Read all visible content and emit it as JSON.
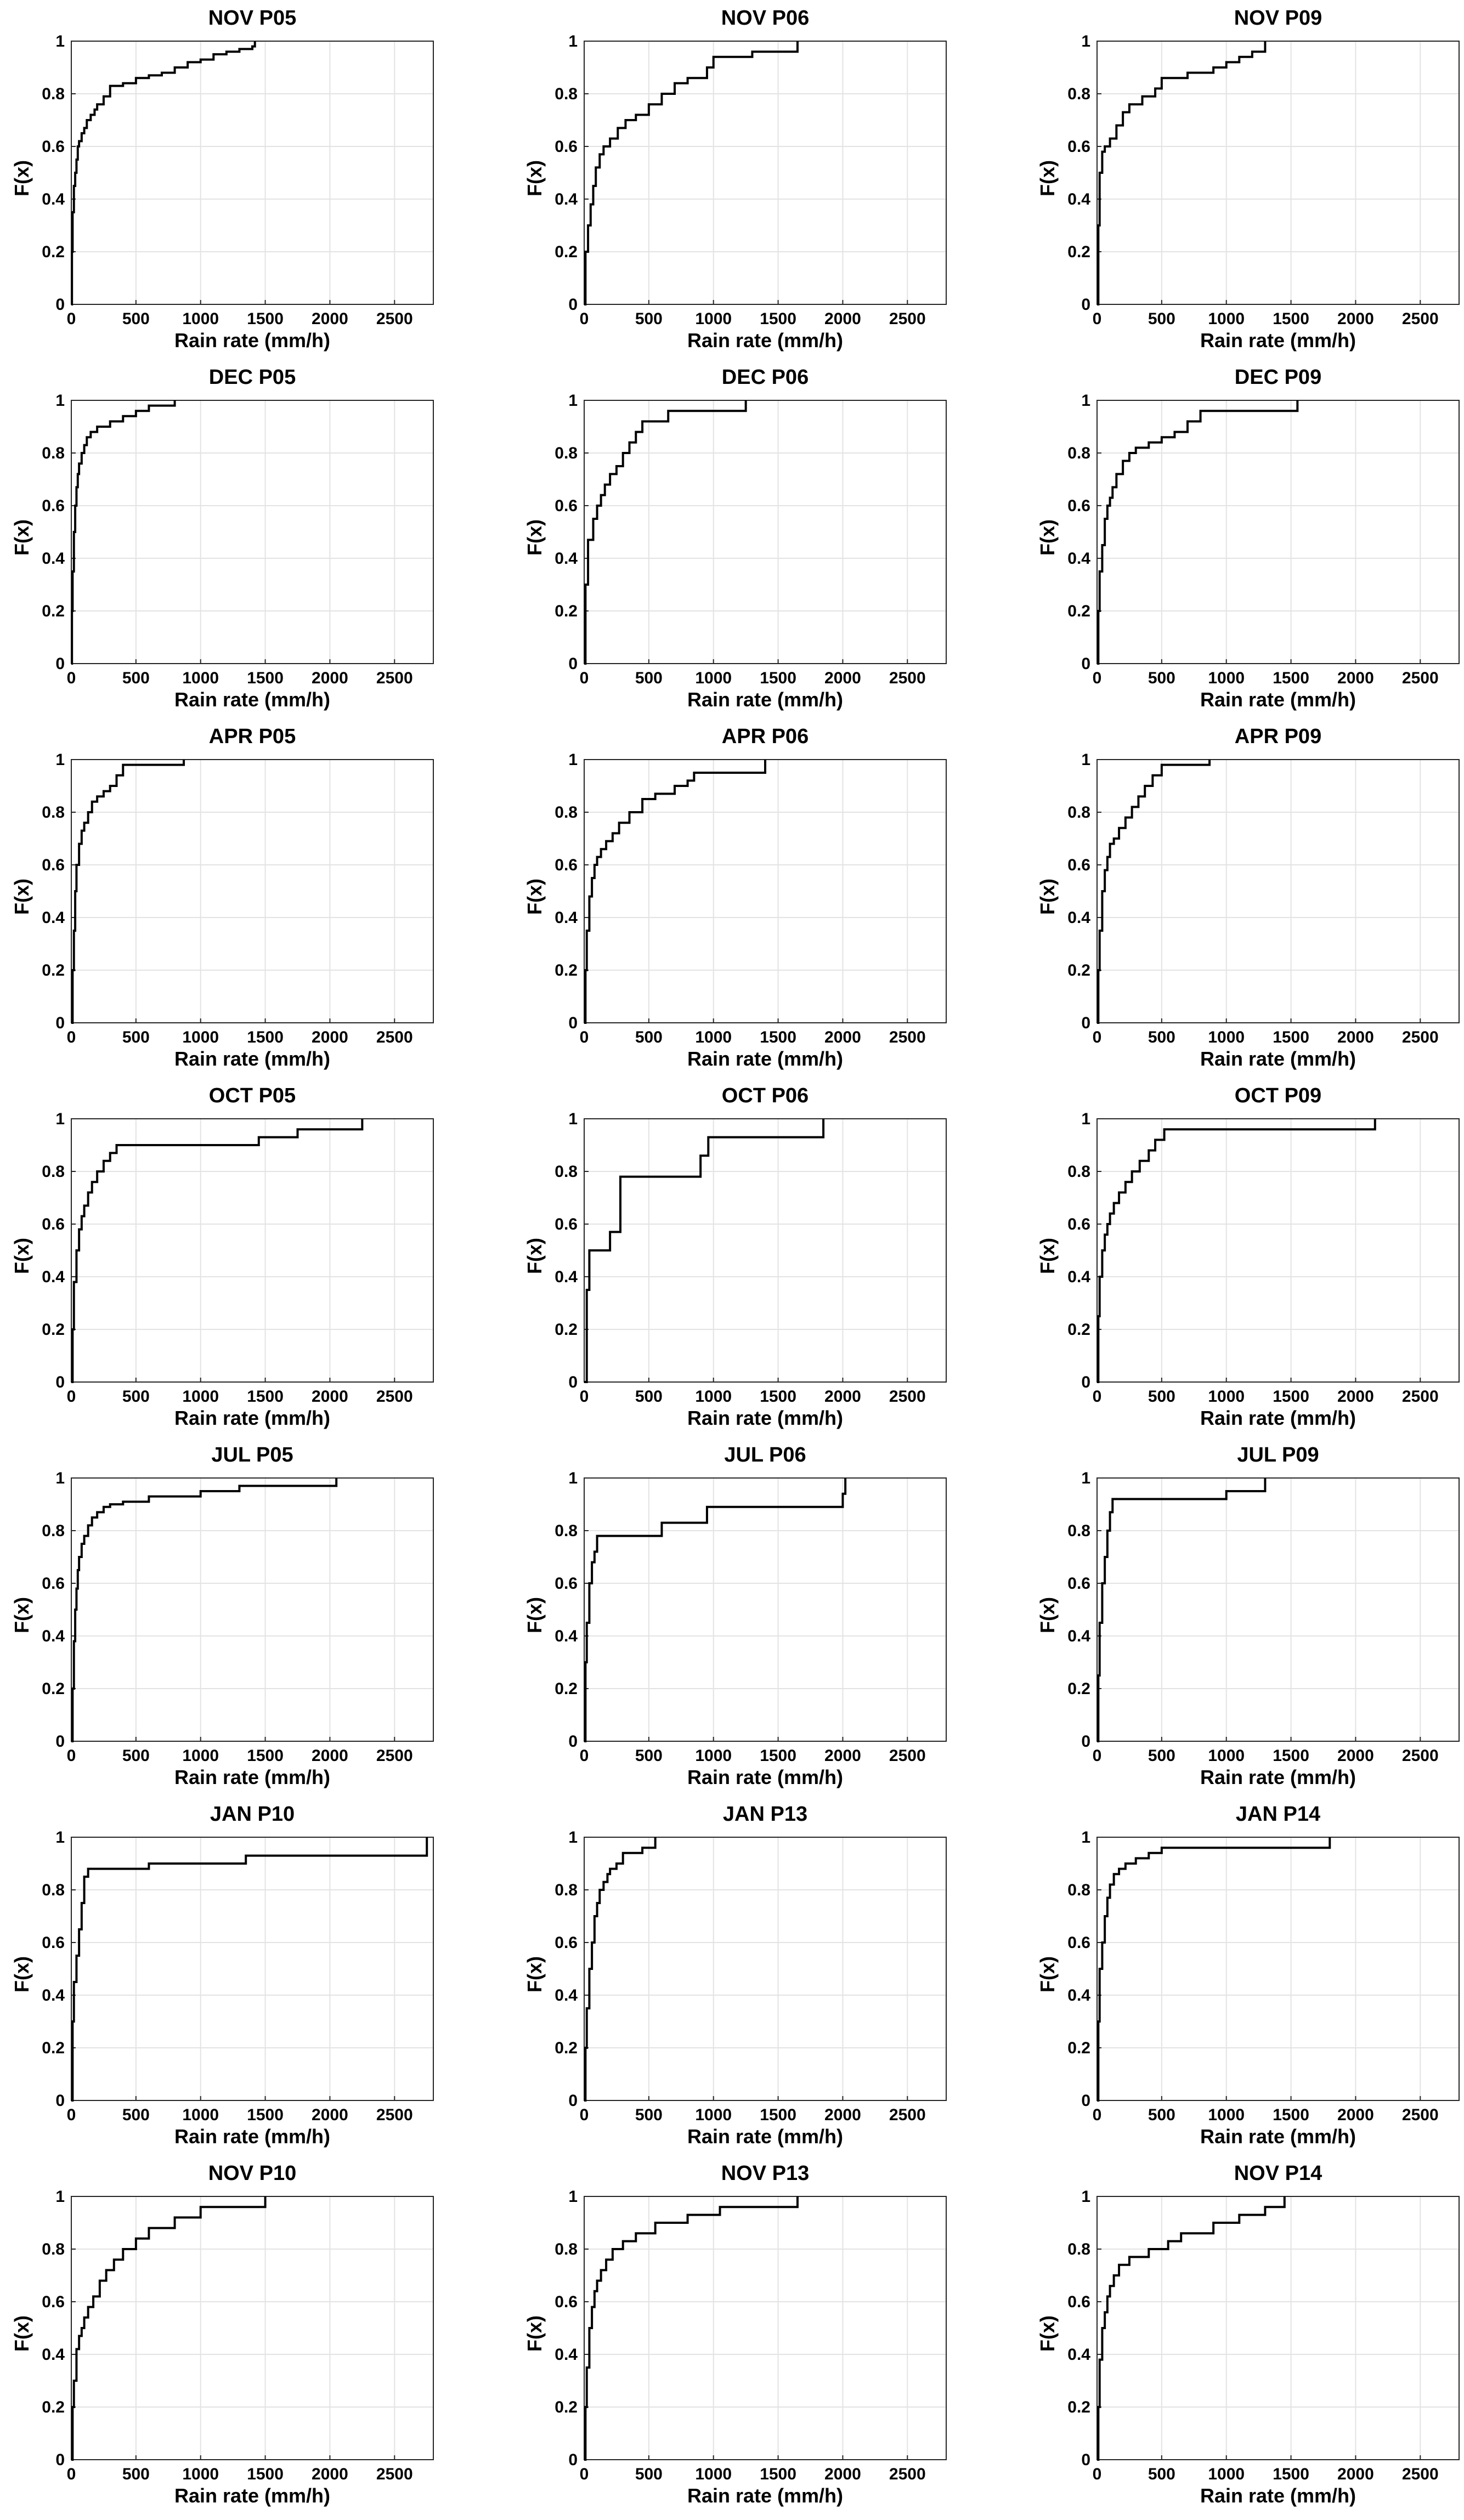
{
  "chart_data": [
    {
      "type": "line",
      "title": "NOV P05",
      "xlabel": "Rain rate (mm/h)",
      "ylabel": "F(x)",
      "xlim": [
        0,
        2800
      ],
      "ylim": [
        0,
        1
      ],
      "grid": true,
      "series": [
        {
          "x": [
            0,
            5,
            10,
            20,
            30,
            40,
            50,
            60,
            80,
            100,
            120,
            150,
            180,
            200,
            250,
            300,
            400,
            500,
            600,
            700,
            800,
            900,
            1000,
            1100,
            1200,
            1300,
            1400,
            1420
          ],
          "y": [
            0,
            0.2,
            0.35,
            0.45,
            0.5,
            0.55,
            0.6,
            0.62,
            0.65,
            0.67,
            0.7,
            0.72,
            0.74,
            0.76,
            0.79,
            0.83,
            0.84,
            0.86,
            0.87,
            0.88,
            0.9,
            0.92,
            0.93,
            0.95,
            0.96,
            0.97,
            0.98,
            1.0
          ]
        }
      ]
    },
    {
      "type": "line",
      "title": "NOV P06",
      "xlabel": "Rain rate (mm/h)",
      "ylabel": "F(x)",
      "xlim": [
        0,
        2800
      ],
      "ylim": [
        0,
        1
      ],
      "grid": true,
      "series": [
        {
          "x": [
            0,
            10,
            30,
            50,
            70,
            90,
            120,
            150,
            200,
            260,
            320,
            400,
            500,
            600,
            700,
            800,
            950,
            1000,
            1300,
            1650
          ],
          "y": [
            0,
            0.2,
            0.3,
            0.38,
            0.45,
            0.52,
            0.57,
            0.6,
            0.63,
            0.67,
            0.7,
            0.72,
            0.76,
            0.8,
            0.84,
            0.86,
            0.9,
            0.94,
            0.96,
            1.0
          ]
        }
      ]
    },
    {
      "type": "line",
      "title": "NOV P09",
      "xlabel": "Rain rate (mm/h)",
      "ylabel": "F(x)",
      "xlim": [
        0,
        2800
      ],
      "ylim": [
        0,
        1
      ],
      "grid": true,
      "series": [
        {
          "x": [
            0,
            10,
            20,
            40,
            60,
            100,
            150,
            200,
            250,
            350,
            450,
            500,
            700,
            900,
            1000,
            1100,
            1200,
            1300
          ],
          "y": [
            0,
            0.3,
            0.5,
            0.58,
            0.6,
            0.63,
            0.68,
            0.73,
            0.76,
            0.79,
            0.82,
            0.86,
            0.88,
            0.9,
            0.92,
            0.94,
            0.96,
            1.0
          ]
        }
      ]
    },
    {
      "type": "line",
      "title": "DEC P05",
      "xlabel": "Rain rate (mm/h)",
      "ylabel": "F(x)",
      "xlim": [
        0,
        2800
      ],
      "ylim": [
        0,
        1
      ],
      "grid": true,
      "series": [
        {
          "x": [
            0,
            5,
            10,
            20,
            30,
            40,
            50,
            60,
            80,
            100,
            120,
            150,
            200,
            300,
            400,
            500,
            600,
            800
          ],
          "y": [
            0,
            0.2,
            0.35,
            0.5,
            0.6,
            0.67,
            0.72,
            0.76,
            0.8,
            0.83,
            0.86,
            0.88,
            0.9,
            0.92,
            0.94,
            0.96,
            0.98,
            1.0
          ]
        }
      ]
    },
    {
      "type": "line",
      "title": "DEC P06",
      "xlabel": "Rain rate (mm/h)",
      "ylabel": "F(x)",
      "xlim": [
        0,
        2800
      ],
      "ylim": [
        0,
        1
      ],
      "grid": true,
      "series": [
        {
          "x": [
            0,
            10,
            30,
            70,
            100,
            130,
            160,
            200,
            250,
            300,
            350,
            400,
            450,
            650,
            1250
          ],
          "y": [
            0,
            0.3,
            0.47,
            0.55,
            0.6,
            0.64,
            0.68,
            0.72,
            0.75,
            0.8,
            0.84,
            0.88,
            0.92,
            0.96,
            1.0
          ]
        }
      ]
    },
    {
      "type": "line",
      "title": "DEC P09",
      "xlabel": "Rain rate (mm/h)",
      "ylabel": "F(x)",
      "xlim": [
        0,
        2800
      ],
      "ylim": [
        0,
        1
      ],
      "grid": true,
      "series": [
        {
          "x": [
            0,
            10,
            20,
            40,
            60,
            80,
            100,
            120,
            150,
            200,
            250,
            300,
            400,
            500,
            600,
            700,
            800,
            1550
          ],
          "y": [
            0,
            0.2,
            0.35,
            0.45,
            0.55,
            0.6,
            0.63,
            0.67,
            0.72,
            0.77,
            0.8,
            0.82,
            0.84,
            0.86,
            0.88,
            0.92,
            0.96,
            1.0
          ]
        }
      ]
    },
    {
      "type": "line",
      "title": "APR P05",
      "xlabel": "Rain rate (mm/h)",
      "ylabel": "F(x)",
      "xlim": [
        0,
        2800
      ],
      "ylim": [
        0,
        1
      ],
      "grid": true,
      "series": [
        {
          "x": [
            0,
            10,
            20,
            30,
            40,
            60,
            80,
            100,
            130,
            160,
            200,
            250,
            300,
            350,
            400,
            870
          ],
          "y": [
            0,
            0.2,
            0.35,
            0.5,
            0.6,
            0.68,
            0.73,
            0.76,
            0.8,
            0.84,
            0.86,
            0.88,
            0.9,
            0.94,
            0.98,
            1.0
          ]
        }
      ]
    },
    {
      "type": "line",
      "title": "APR P06",
      "xlabel": "Rain rate (mm/h)",
      "ylabel": "F(x)",
      "xlim": [
        0,
        2800
      ],
      "ylim": [
        0,
        1
      ],
      "grid": true,
      "series": [
        {
          "x": [
            0,
            10,
            20,
            40,
            60,
            80,
            100,
            130,
            170,
            220,
            270,
            350,
            450,
            550,
            700,
            800,
            850,
            1400
          ],
          "y": [
            0,
            0.2,
            0.35,
            0.48,
            0.55,
            0.6,
            0.63,
            0.66,
            0.69,
            0.72,
            0.76,
            0.8,
            0.85,
            0.87,
            0.9,
            0.92,
            0.95,
            1.0
          ]
        }
      ]
    },
    {
      "type": "line",
      "title": "APR P09",
      "xlabel": "Rain rate (mm/h)",
      "ylabel": "F(x)",
      "xlim": [
        0,
        2800
      ],
      "ylim": [
        0,
        1
      ],
      "grid": true,
      "series": [
        {
          "x": [
            0,
            10,
            20,
            40,
            60,
            80,
            100,
            130,
            170,
            220,
            270,
            320,
            370,
            430,
            500,
            870
          ],
          "y": [
            0,
            0.2,
            0.35,
            0.5,
            0.58,
            0.63,
            0.68,
            0.7,
            0.74,
            0.78,
            0.82,
            0.86,
            0.9,
            0.94,
            0.98,
            1.0
          ]
        }
      ]
    },
    {
      "type": "line",
      "title": "OCT P05",
      "xlabel": "Rain rate (mm/h)",
      "ylabel": "F(x)",
      "xlim": [
        0,
        2800
      ],
      "ylim": [
        0,
        1
      ],
      "grid": true,
      "series": [
        {
          "x": [
            0,
            10,
            20,
            40,
            60,
            80,
            100,
            130,
            160,
            200,
            250,
            300,
            350,
            1450,
            1750,
            2250
          ],
          "y": [
            0,
            0.2,
            0.38,
            0.5,
            0.58,
            0.63,
            0.67,
            0.72,
            0.76,
            0.8,
            0.84,
            0.87,
            0.9,
            0.93,
            0.96,
            1.0
          ]
        }
      ]
    },
    {
      "type": "line",
      "title": "OCT P06",
      "xlabel": "Rain rate (mm/h)",
      "ylabel": "F(x)",
      "xlim": [
        0,
        2800
      ],
      "ylim": [
        0,
        1
      ],
      "grid": true,
      "series": [
        {
          "x": [
            0,
            20,
            40,
            200,
            280,
            900,
            960,
            1850
          ],
          "y": [
            0,
            0.35,
            0.5,
            0.57,
            0.78,
            0.86,
            0.93,
            1.0
          ]
        }
      ]
    },
    {
      "type": "line",
      "title": "OCT P09",
      "xlabel": "Rain rate (mm/h)",
      "ylabel": "F(x)",
      "xlim": [
        0,
        2800
      ],
      "ylim": [
        0,
        1
      ],
      "grid": true,
      "series": [
        {
          "x": [
            0,
            10,
            20,
            40,
            60,
            80,
            100,
            130,
            170,
            220,
            270,
            330,
            400,
            450,
            520,
            2150
          ],
          "y": [
            0,
            0.25,
            0.4,
            0.5,
            0.56,
            0.6,
            0.64,
            0.68,
            0.72,
            0.76,
            0.8,
            0.84,
            0.88,
            0.92,
            0.96,
            1.0
          ]
        }
      ]
    },
    {
      "type": "line",
      "title": "JUL P05",
      "xlabel": "Rain rate (mm/h)",
      "ylabel": "F(x)",
      "xlim": [
        0,
        2800
      ],
      "ylim": [
        0,
        1
      ],
      "grid": true,
      "series": [
        {
          "x": [
            0,
            10,
            20,
            30,
            40,
            50,
            60,
            80,
            100,
            130,
            160,
            200,
            250,
            300,
            400,
            600,
            1000,
            1300,
            2050
          ],
          "y": [
            0,
            0.2,
            0.38,
            0.5,
            0.58,
            0.65,
            0.7,
            0.75,
            0.78,
            0.82,
            0.85,
            0.87,
            0.89,
            0.9,
            0.91,
            0.93,
            0.95,
            0.97,
            1.0
          ]
        }
      ]
    },
    {
      "type": "line",
      "title": "JUL P06",
      "xlabel": "Rain rate (mm/h)",
      "ylabel": "F(x)",
      "xlim": [
        0,
        2800
      ],
      "ylim": [
        0,
        1
      ],
      "grid": true,
      "series": [
        {
          "x": [
            0,
            10,
            20,
            40,
            60,
            80,
            100,
            600,
            950,
            2000,
            2020
          ],
          "y": [
            0,
            0.3,
            0.45,
            0.6,
            0.68,
            0.72,
            0.78,
            0.83,
            0.89,
            0.94,
            1.0
          ]
        }
      ]
    },
    {
      "type": "line",
      "title": "JUL P09",
      "xlabel": "Rain rate (mm/h)",
      "ylabel": "F(x)",
      "xlim": [
        0,
        2800
      ],
      "ylim": [
        0,
        1
      ],
      "grid": true,
      "series": [
        {
          "x": [
            0,
            10,
            20,
            40,
            60,
            80,
            100,
            120,
            1000,
            1300
          ],
          "y": [
            0,
            0.25,
            0.45,
            0.6,
            0.7,
            0.8,
            0.87,
            0.92,
            0.95,
            1.0
          ]
        }
      ]
    },
    {
      "type": "line",
      "title": "JAN P10",
      "xlabel": "Rain rate (mm/h)",
      "ylabel": "F(x)",
      "xlim": [
        0,
        2800
      ],
      "ylim": [
        0,
        1
      ],
      "grid": true,
      "series": [
        {
          "x": [
            0,
            10,
            20,
            40,
            60,
            80,
            100,
            130,
            600,
            1350,
            2750
          ],
          "y": [
            0,
            0.3,
            0.45,
            0.55,
            0.65,
            0.75,
            0.85,
            0.88,
            0.9,
            0.93,
            1.0
          ]
        }
      ]
    },
    {
      "type": "line",
      "title": "JAN P13",
      "xlabel": "Rain rate (mm/h)",
      "ylabel": "F(x)",
      "xlim": [
        0,
        2800
      ],
      "ylim": [
        0,
        1
      ],
      "grid": true,
      "series": [
        {
          "x": [
            0,
            10,
            20,
            40,
            60,
            80,
            100,
            120,
            150,
            180,
            200,
            250,
            300,
            450,
            550
          ],
          "y": [
            0,
            0.2,
            0.35,
            0.5,
            0.6,
            0.7,
            0.75,
            0.8,
            0.83,
            0.86,
            0.88,
            0.9,
            0.94,
            0.96,
            1.0
          ]
        }
      ]
    },
    {
      "type": "line",
      "title": "JAN P14",
      "xlabel": "Rain rate (mm/h)",
      "ylabel": "F(x)",
      "xlim": [
        0,
        2800
      ],
      "ylim": [
        0,
        1
      ],
      "grid": true,
      "series": [
        {
          "x": [
            0,
            10,
            20,
            40,
            60,
            80,
            100,
            130,
            170,
            220,
            300,
            400,
            500,
            1800
          ],
          "y": [
            0,
            0.3,
            0.5,
            0.6,
            0.7,
            0.77,
            0.82,
            0.86,
            0.88,
            0.9,
            0.92,
            0.94,
            0.96,
            1.0
          ]
        }
      ]
    },
    {
      "type": "line",
      "title": "NOV P10",
      "xlabel": "Rain rate (mm/h)",
      "ylabel": "F(x)",
      "xlim": [
        0,
        2800
      ],
      "ylim": [
        0,
        1
      ],
      "grid": true,
      "series": [
        {
          "x": [
            0,
            10,
            20,
            40,
            60,
            80,
            100,
            130,
            170,
            220,
            270,
            330,
            400,
            500,
            600,
            800,
            1000,
            1500
          ],
          "y": [
            0,
            0.2,
            0.3,
            0.42,
            0.47,
            0.5,
            0.54,
            0.58,
            0.62,
            0.68,
            0.72,
            0.76,
            0.8,
            0.84,
            0.88,
            0.92,
            0.96,
            1.0
          ]
        }
      ]
    },
    {
      "type": "line",
      "title": "NOV P13",
      "xlabel": "Rain rate (mm/h)",
      "ylabel": "F(x)",
      "xlim": [
        0,
        2800
      ],
      "ylim": [
        0,
        1
      ],
      "grid": true,
      "series": [
        {
          "x": [
            0,
            10,
            20,
            40,
            60,
            80,
            100,
            130,
            170,
            220,
            300,
            400,
            550,
            800,
            1050,
            1650
          ],
          "y": [
            0,
            0.2,
            0.35,
            0.5,
            0.58,
            0.64,
            0.68,
            0.72,
            0.76,
            0.8,
            0.83,
            0.86,
            0.9,
            0.93,
            0.96,
            1.0
          ]
        }
      ]
    },
    {
      "type": "line",
      "title": "NOV P14",
      "xlabel": "Rain rate (mm/h)",
      "ylabel": "F(x)",
      "xlim": [
        0,
        2800
      ],
      "ylim": [
        0,
        1
      ],
      "grid": true,
      "series": [
        {
          "x": [
            0,
            10,
            20,
            40,
            60,
            80,
            100,
            130,
            170,
            250,
            400,
            550,
            650,
            900,
            1100,
            1300,
            1450
          ],
          "y": [
            0,
            0.2,
            0.38,
            0.5,
            0.56,
            0.62,
            0.66,
            0.7,
            0.74,
            0.77,
            0.8,
            0.83,
            0.86,
            0.9,
            0.93,
            0.96,
            1.0
          ]
        }
      ]
    }
  ],
  "ticks": {
    "x": [
      0,
      500,
      1000,
      1500,
      2000,
      2500
    ],
    "y": [
      0,
      0.2,
      0.4,
      0.6,
      0.8,
      1
    ]
  }
}
